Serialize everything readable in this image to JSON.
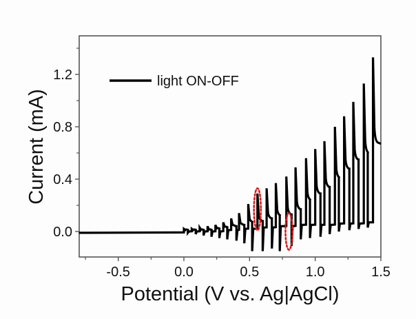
{
  "chart_data": {
    "type": "line",
    "title": "",
    "xlabel": "Potential (V vs. Ag|AgCl)",
    "ylabel": "Current (mA)",
    "xlim": [
      -0.8,
      1.5
    ],
    "ylim": [
      -0.17,
      1.5
    ],
    "x_ticks": [
      -0.5,
      0.0,
      0.5,
      1.0,
      1.5
    ],
    "x_tick_labels": [
      "-0.5",
      "0.0",
      "0.5",
      "1.0",
      "1.5"
    ],
    "y_ticks": [
      0.0,
      0.4,
      0.8,
      1.2
    ],
    "y_tick_labels": [
      "0.0",
      "0.4",
      "0.8",
      "1.2"
    ],
    "grid": false,
    "legend": {
      "position": "top-left",
      "entries": [
        "light ON-OFF"
      ]
    },
    "series": [
      {
        "name": "light ON-OFF",
        "color": "#000000",
        "start": {
          "x": -0.8,
          "y": -0.01
        },
        "cycles": [
          {
            "on_x": 0.0,
            "peak": 0.02,
            "on_plateau": 0.01,
            "off_x": 0.03,
            "dip": -0.01,
            "off_base": 0.0
          },
          {
            "on_x": 0.06,
            "peak": 0.02,
            "on_plateau": 0.01,
            "off_x": 0.09,
            "dip": -0.02,
            "off_base": 0.0
          },
          {
            "on_x": 0.12,
            "peak": 0.03,
            "on_plateau": 0.01,
            "off_x": 0.15,
            "dip": -0.03,
            "off_base": 0.0
          },
          {
            "on_x": 0.18,
            "peak": 0.04,
            "on_plateau": 0.01,
            "off_x": 0.21,
            "dip": -0.04,
            "off_base": 0.0
          },
          {
            "on_x": 0.24,
            "peak": 0.05,
            "on_plateau": 0.02,
            "off_x": 0.27,
            "dip": -0.05,
            "off_base": 0.0
          },
          {
            "on_x": 0.3,
            "peak": 0.07,
            "on_plateau": 0.03,
            "off_x": 0.33,
            "dip": -0.06,
            "off_base": 0.01
          },
          {
            "on_x": 0.36,
            "peak": 0.1,
            "on_plateau": 0.04,
            "off_x": 0.4,
            "dip": -0.07,
            "off_base": 0.01
          },
          {
            "on_x": 0.42,
            "peak": 0.14,
            "on_plateau": 0.05,
            "off_x": 0.46,
            "dip": -0.09,
            "off_base": 0.02
          },
          {
            "on_x": 0.49,
            "peak": 0.21,
            "on_plateau": 0.07,
            "off_x": 0.52,
            "dip": -0.15,
            "off_base": 0.02
          },
          {
            "on_x": 0.56,
            "peak": 0.29,
            "on_plateau": 0.08,
            "off_x": 0.6,
            "dip": -0.15,
            "off_base": 0.03
          },
          {
            "on_x": 0.63,
            "peak": 0.33,
            "on_plateau": 0.1,
            "off_x": 0.67,
            "dip": -0.13,
            "off_base": 0.03
          },
          {
            "on_x": 0.7,
            "peak": 0.37,
            "on_plateau": 0.12,
            "off_x": 0.73,
            "dip": -0.15,
            "off_base": 0.04
          },
          {
            "on_x": 0.78,
            "peak": 0.42,
            "on_plateau": 0.13,
            "off_x": 0.82,
            "dip": -0.11,
            "off_base": 0.04
          },
          {
            "on_x": 0.85,
            "peak": 0.49,
            "on_plateau": 0.17,
            "off_x": 0.89,
            "dip": -0.06,
            "off_base": 0.05
          },
          {
            "on_x": 0.93,
            "peak": 0.56,
            "on_plateau": 0.24,
            "off_x": 0.96,
            "dip": -0.05,
            "off_base": 0.05
          },
          {
            "on_x": 1.0,
            "peak": 0.63,
            "on_plateau": 0.29,
            "off_x": 1.04,
            "dip": -0.04,
            "off_base": 0.05
          },
          {
            "on_x": 1.07,
            "peak": 0.69,
            "on_plateau": 0.34,
            "off_x": 1.11,
            "dip": -0.02,
            "off_base": 0.05
          },
          {
            "on_x": 1.15,
            "peak": 0.8,
            "on_plateau": 0.41,
            "off_x": 1.18,
            "dip": 0.0,
            "off_base": 0.06
          },
          {
            "on_x": 1.22,
            "peak": 0.88,
            "on_plateau": 0.48,
            "off_x": 1.26,
            "dip": 0.01,
            "off_base": 0.06
          },
          {
            "on_x": 1.29,
            "peak": 0.99,
            "on_plateau": 0.55,
            "off_x": 1.33,
            "dip": 0.02,
            "off_base": 0.06
          },
          {
            "on_x": 1.37,
            "peak": 1.13,
            "on_plateau": 0.6,
            "off_x": 1.4,
            "dip": 0.03,
            "off_base": 0.07
          },
          {
            "on_x": 1.44,
            "peak": 1.33,
            "on_plateau": 0.68,
            "off_x": null,
            "dip": null,
            "off_base": null
          }
        ],
        "end": {
          "x": 1.5,
          "y": 0.67
        }
      }
    ],
    "annotations": [
      {
        "type": "dashed-ellipse",
        "color": "#e0191b",
        "center_x": 0.56,
        "center_y": 0.17,
        "rx_v": 0.045,
        "ry_ma": 0.16
      },
      {
        "type": "dashed-ellipse",
        "color": "#e0191b",
        "center_x": 0.8,
        "center_y": -0.0,
        "rx_v": 0.045,
        "ry_ma": 0.14
      }
    ]
  }
}
